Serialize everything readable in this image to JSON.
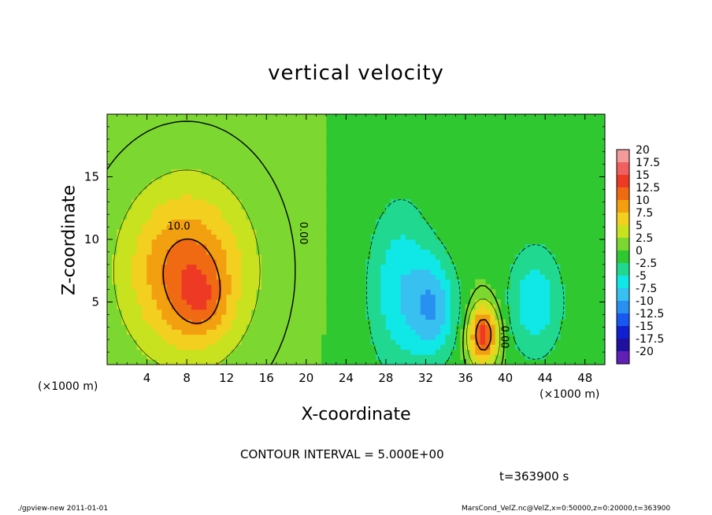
{
  "chart_data": {
    "type": "heatmap",
    "title": "vertical velocity",
    "xlabel": "X-coordinate",
    "ylabel": "Z-coordinate",
    "x_unit_left": "(×1000 m)",
    "x_unit_right": "(×1000 m)",
    "xlim": [
      0,
      50
    ],
    "ylim": [
      0,
      20
    ],
    "x_ticks": [
      4,
      8,
      12,
      16,
      20,
      24,
      28,
      32,
      36,
      40,
      44,
      48
    ],
    "y_ticks": [
      5,
      10,
      15
    ],
    "contour_interval_text": "CONTOUR INTERVAL = 5.000E+00",
    "time_text": "t=363900 s",
    "contour_labels": [
      {
        "text": "10.0",
        "x": 7.2,
        "z": 10.8
      },
      {
        "text": "0.00",
        "x": 19.4,
        "z": 10.5
      },
      {
        "text": "0.00",
        "x": 39.6,
        "z": 2.2
      }
    ],
    "features": [
      {
        "kind": "updraft",
        "x": 8.0,
        "z": 7.5,
        "sx": 4.2,
        "sz": 4.6,
        "peak": 11.5
      },
      {
        "kind": "updraft",
        "x": 9.5,
        "z": 5.0,
        "sx": 1.8,
        "sz": 2.0,
        "peak": 4.0
      },
      {
        "kind": "updraft",
        "x": 37.8,
        "z": 2.4,
        "sx": 1.0,
        "sz": 1.6,
        "peak": 14.0
      },
      {
        "kind": "downdraft",
        "x": 29.5,
        "z": 6.0,
        "sx": 2.4,
        "sz": 5.0,
        "peak": -7.0
      },
      {
        "kind": "downdraft",
        "x": 33.0,
        "z": 4.5,
        "sx": 1.6,
        "sz": 2.8,
        "peak": -8.0
      },
      {
        "kind": "downdraft",
        "x": 43.0,
        "z": 5.0,
        "sx": 2.0,
        "sz": 3.2,
        "peak": -7.0
      }
    ],
    "colorbar": {
      "levels": [
        "20",
        "17.5",
        "15",
        "12.5",
        "10",
        "7.5",
        "5",
        "2.5",
        "0",
        "-2.5",
        "-5",
        "-7.5",
        "-10",
        "-12.5",
        "-15",
        "-17.5",
        "-20"
      ],
      "colors": [
        "#f39a9a",
        "#f06060",
        "#ee3a24",
        "#f06a14",
        "#f3a010",
        "#f3d020",
        "#c8e220",
        "#7cd830",
        "#30c830",
        "#20d890",
        "#10e8e8",
        "#38c0f0",
        "#2890f0",
        "#1858f0",
        "#1020d0",
        "#2010a0",
        "#6020b8"
      ]
    }
  },
  "footer": {
    "left": "./gpview-new   2011-01-01",
    "right": "MarsCond_VelZ.nc@VelZ,x=0:50000,z=0:20000,t=363900"
  }
}
